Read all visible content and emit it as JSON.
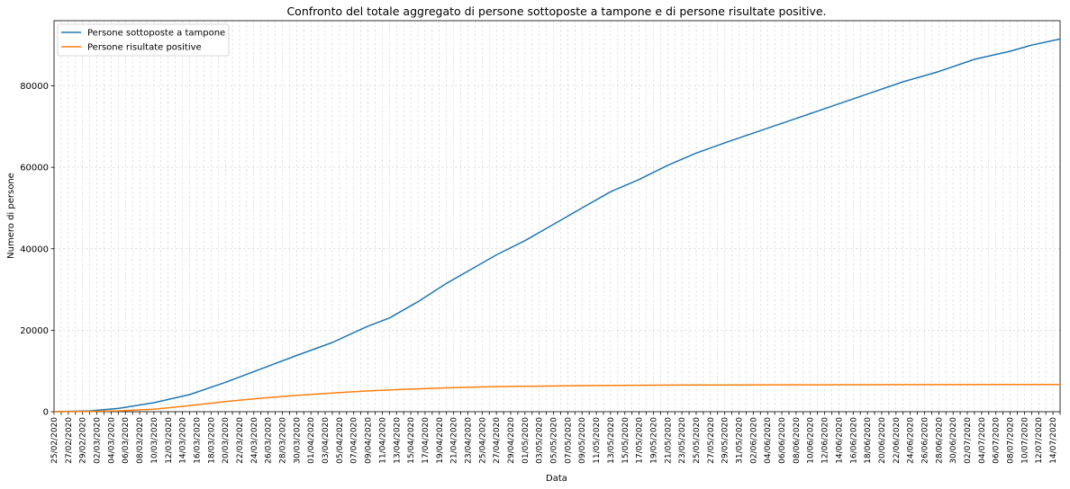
{
  "chart_data": {
    "type": "line",
    "title": "Confronto del totale aggregato di persone sottoposte a tampone e di persone risultate positive.",
    "xlabel": "Data",
    "ylabel": "Numero di persone",
    "ylim": [
      0,
      96000
    ],
    "yticks": [
      "0",
      "20000",
      "40000",
      "60000",
      "80000"
    ],
    "grid": true,
    "legend_position": "top-left",
    "date_start": "25/02/2020",
    "date_end": "15/07/2020",
    "series": [
      {
        "name": "Persone sottoposte a tampone",
        "color": "#1f77b4",
        "x": [
          "25/02/2020",
          "01/03/2020",
          "05/03/2020",
          "10/03/2020",
          "15/03/2020",
          "20/03/2020",
          "25/03/2020",
          "30/03/2020",
          "04/04/2020",
          "09/04/2020",
          "12/04/2020",
          "16/04/2020",
          "20/04/2020",
          "24/04/2020",
          "27/04/2020",
          "01/05/2020",
          "05/05/2020",
          "09/05/2020",
          "13/05/2020",
          "17/05/2020",
          "21/05/2020",
          "25/05/2020",
          "29/05/2020",
          "03/06/2020",
          "08/06/2020",
          "13/06/2020",
          "18/06/2020",
          "23/06/2020",
          "28/06/2020",
          "03/07/2020",
          "08/07/2020",
          "11/07/2020",
          "15/07/2020"
        ],
        "y": [
          0,
          200,
          800,
          2200,
          4200,
          7200,
          10500,
          13800,
          17000,
          21000,
          23000,
          27000,
          31500,
          35500,
          38500,
          42000,
          46000,
          50000,
          54000,
          57000,
          60500,
          63500,
          66000,
          69000,
          72000,
          75000,
          78000,
          81000,
          83500,
          86500,
          88500,
          90000,
          91500
        ]
      },
      {
        "name": "Persone risultate positive",
        "color": "#ff7f0e",
        "x": [
          "25/02/2020",
          "01/03/2020",
          "05/03/2020",
          "10/03/2020",
          "15/03/2020",
          "20/03/2020",
          "25/03/2020",
          "30/03/2020",
          "04/04/2020",
          "09/04/2020",
          "14/04/2020",
          "19/04/2020",
          "24/04/2020",
          "29/04/2020",
          "04/05/2020",
          "09/05/2020",
          "14/05/2020",
          "19/05/2020",
          "24/05/2020",
          "29/05/2020",
          "05/06/2020",
          "15/06/2020",
          "25/06/2020",
          "05/07/2020",
          "15/07/2020"
        ],
        "y": [
          0,
          50,
          200,
          600,
          1500,
          2500,
          3300,
          4000,
          4600,
          5100,
          5500,
          5800,
          6050,
          6200,
          6300,
          6400,
          6450,
          6500,
          6550,
          6580,
          6600,
          6630,
          6650,
          6670,
          6680
        ]
      }
    ]
  }
}
